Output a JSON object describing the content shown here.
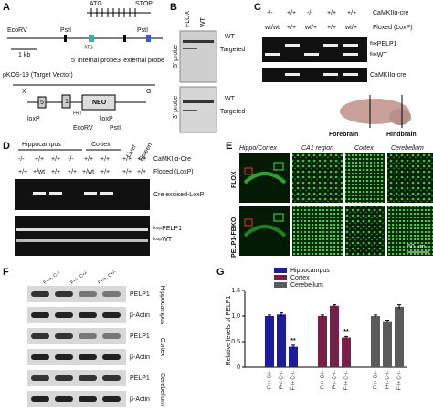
{
  "panels": {
    "A": {
      "label": "A",
      "atg": "ATG",
      "stop": "STOP",
      "ecorv": "EcoRV",
      "scale": "1 kb",
      "psti_1": "PstI",
      "atg_2": "ATG",
      "probe_5": "5' internal probe",
      "psti_2": "PstI",
      "probe_3": "3' external probe",
      "vector": "pKOS-19 (Target Vector)",
      "x": "X",
      "g": "G",
      "exon_5": "5",
      "exon_1": "1",
      "neo": "NEO",
      "loxp_1": "loxP",
      "loxp_2": "loxP",
      "frt": "FRT",
      "ecorv_2": "EcoRV",
      "psti_3": "PstI"
    },
    "B": {
      "label": "B",
      "lanes": [
        "FLOX",
        "WT"
      ],
      "probe_5": "5' probe",
      "probe_3": "3' probe",
      "wt_1": "WT",
      "targeted_1": "Targeted",
      "wt_2": "WT",
      "targeted_2": "Targeted"
    },
    "C": {
      "label": "C",
      "cre_row": [
        "-/-",
        "+/+",
        "-/-",
        "+/+",
        "+/+"
      ],
      "flox_row": [
        "wt/wt",
        "+/+",
        "wt/+",
        "+/+",
        "wt/+"
      ],
      "cre_label": "CaMKIIα-cre",
      "flox_label": "Floxed (LoxP)",
      "band_1_prefix": "flox",
      "band_1": "PELP1",
      "band_2_prefix": "flox",
      "band_2": "WT",
      "gel_2": "CaMKIIα-cre",
      "forebrain": "Forebrain",
      "hindbrain": "Hindbrain"
    },
    "D": {
      "label": "D",
      "hippocampus": "Hippocampus",
      "cortex": "Cortex",
      "liver": "Liver",
      "spleen": "Spleen",
      "cre_row": [
        "-/-",
        "+/+",
        "+/+",
        "-/-",
        "+/+",
        "+/+",
        "+/+",
        "+/+"
      ],
      "flox_row": [
        "+/+",
        "+/wt",
        "+/+",
        "+/+",
        "+/wt",
        "+/+",
        "+/+",
        "+/+"
      ],
      "cre_label": "CaMKIIα-Cre",
      "flox_label": "Floxed (LoxP)",
      "gel_1": "Cre excised-LoxP",
      "band_1_prefix": "loxp",
      "band_1": "PELP1",
      "band_2_prefix": "loxp",
      "band_2": "WT"
    },
    "E": {
      "label": "E",
      "columns": [
        "Hippo/Cortex",
        "CA1 region",
        "Cortex",
        "Cerebellum"
      ],
      "rows": [
        "FLOX",
        "PELP1-FBKO"
      ],
      "scale": "50 μm"
    },
    "F": {
      "label": "F",
      "columns": [
        "F+/+, C-/-",
        "F+/-, C+/-",
        "F+/+, C+/-"
      ],
      "blots": [
        "PELP1",
        "β-Actin",
        "PELP1",
        "β-Actin",
        "PELP1",
        "β-Actin"
      ],
      "regions": [
        "Hippocampus",
        "Cortex",
        "Cerebellum"
      ]
    }
  },
  "chart_data": {
    "type": "bar",
    "panel_label": "G",
    "y_label": "Relative levels of PELP1",
    "categories": [
      "F+/+ C-/-",
      "F+/- C+/-",
      "F+/+ C+/-"
    ],
    "series": [
      {
        "name": "Hippocampus",
        "color": "#1c1c9c",
        "values": [
          1.0,
          1.03,
          0.4
        ],
        "errors": [
          0.02,
          0.03,
          0.03
        ],
        "annotations": [
          null,
          null,
          "**"
        ]
      },
      {
        "name": "Cortex",
        "color": "#7a1f4a",
        "values": [
          1.0,
          1.2,
          0.58
        ],
        "errors": [
          0.02,
          0.02,
          0.02
        ],
        "annotations": [
          null,
          null,
          "**"
        ]
      },
      {
        "name": "Cerebellum",
        "color": "#5a5a5a",
        "values": [
          1.0,
          0.9,
          1.18
        ],
        "errors": [
          0.02,
          0.02,
          0.04
        ]
      }
    ],
    "ylim": [
      0,
      1.5
    ],
    "yticks": [
      0,
      0.5,
      {
        "value": 1,
        "label": "1.0"
      },
      1.5
    ]
  }
}
